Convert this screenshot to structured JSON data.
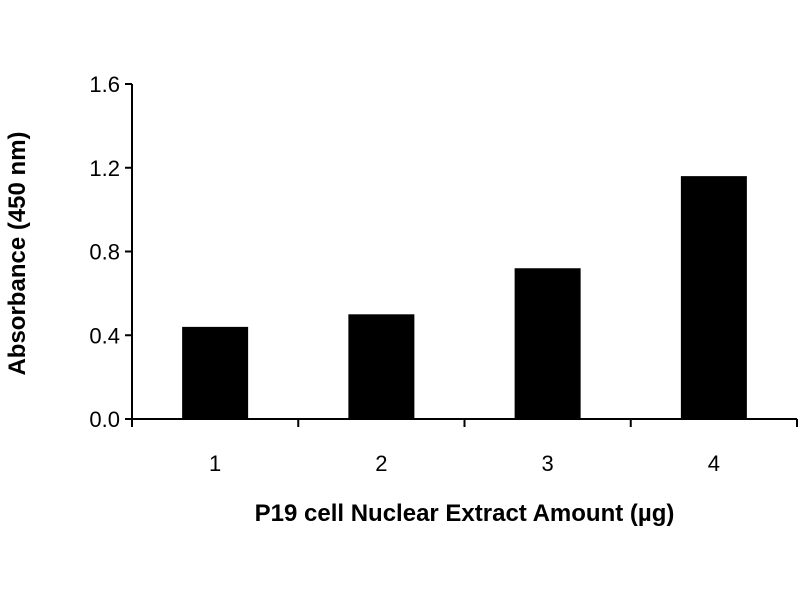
{
  "chart_data": {
    "type": "bar",
    "title": "",
    "xlabel": "P19 cell Nuclear Extract Amount (µg)",
    "ylabel": "Absorbance (450 nm)",
    "categories": [
      "1",
      "2",
      "3",
      "4"
    ],
    "values": [
      0.44,
      0.5,
      0.72,
      1.16
    ],
    "ylim": [
      0,
      1.6
    ],
    "yticks": [
      "0.0",
      "0.4",
      "0.8",
      "1.2",
      "1.6"
    ],
    "ytick_values": [
      0,
      0.4,
      0.8,
      1.2,
      1.6
    ],
    "bar_color": "#000000",
    "axis_color": "#000000",
    "grid": false,
    "legend": "none"
  }
}
